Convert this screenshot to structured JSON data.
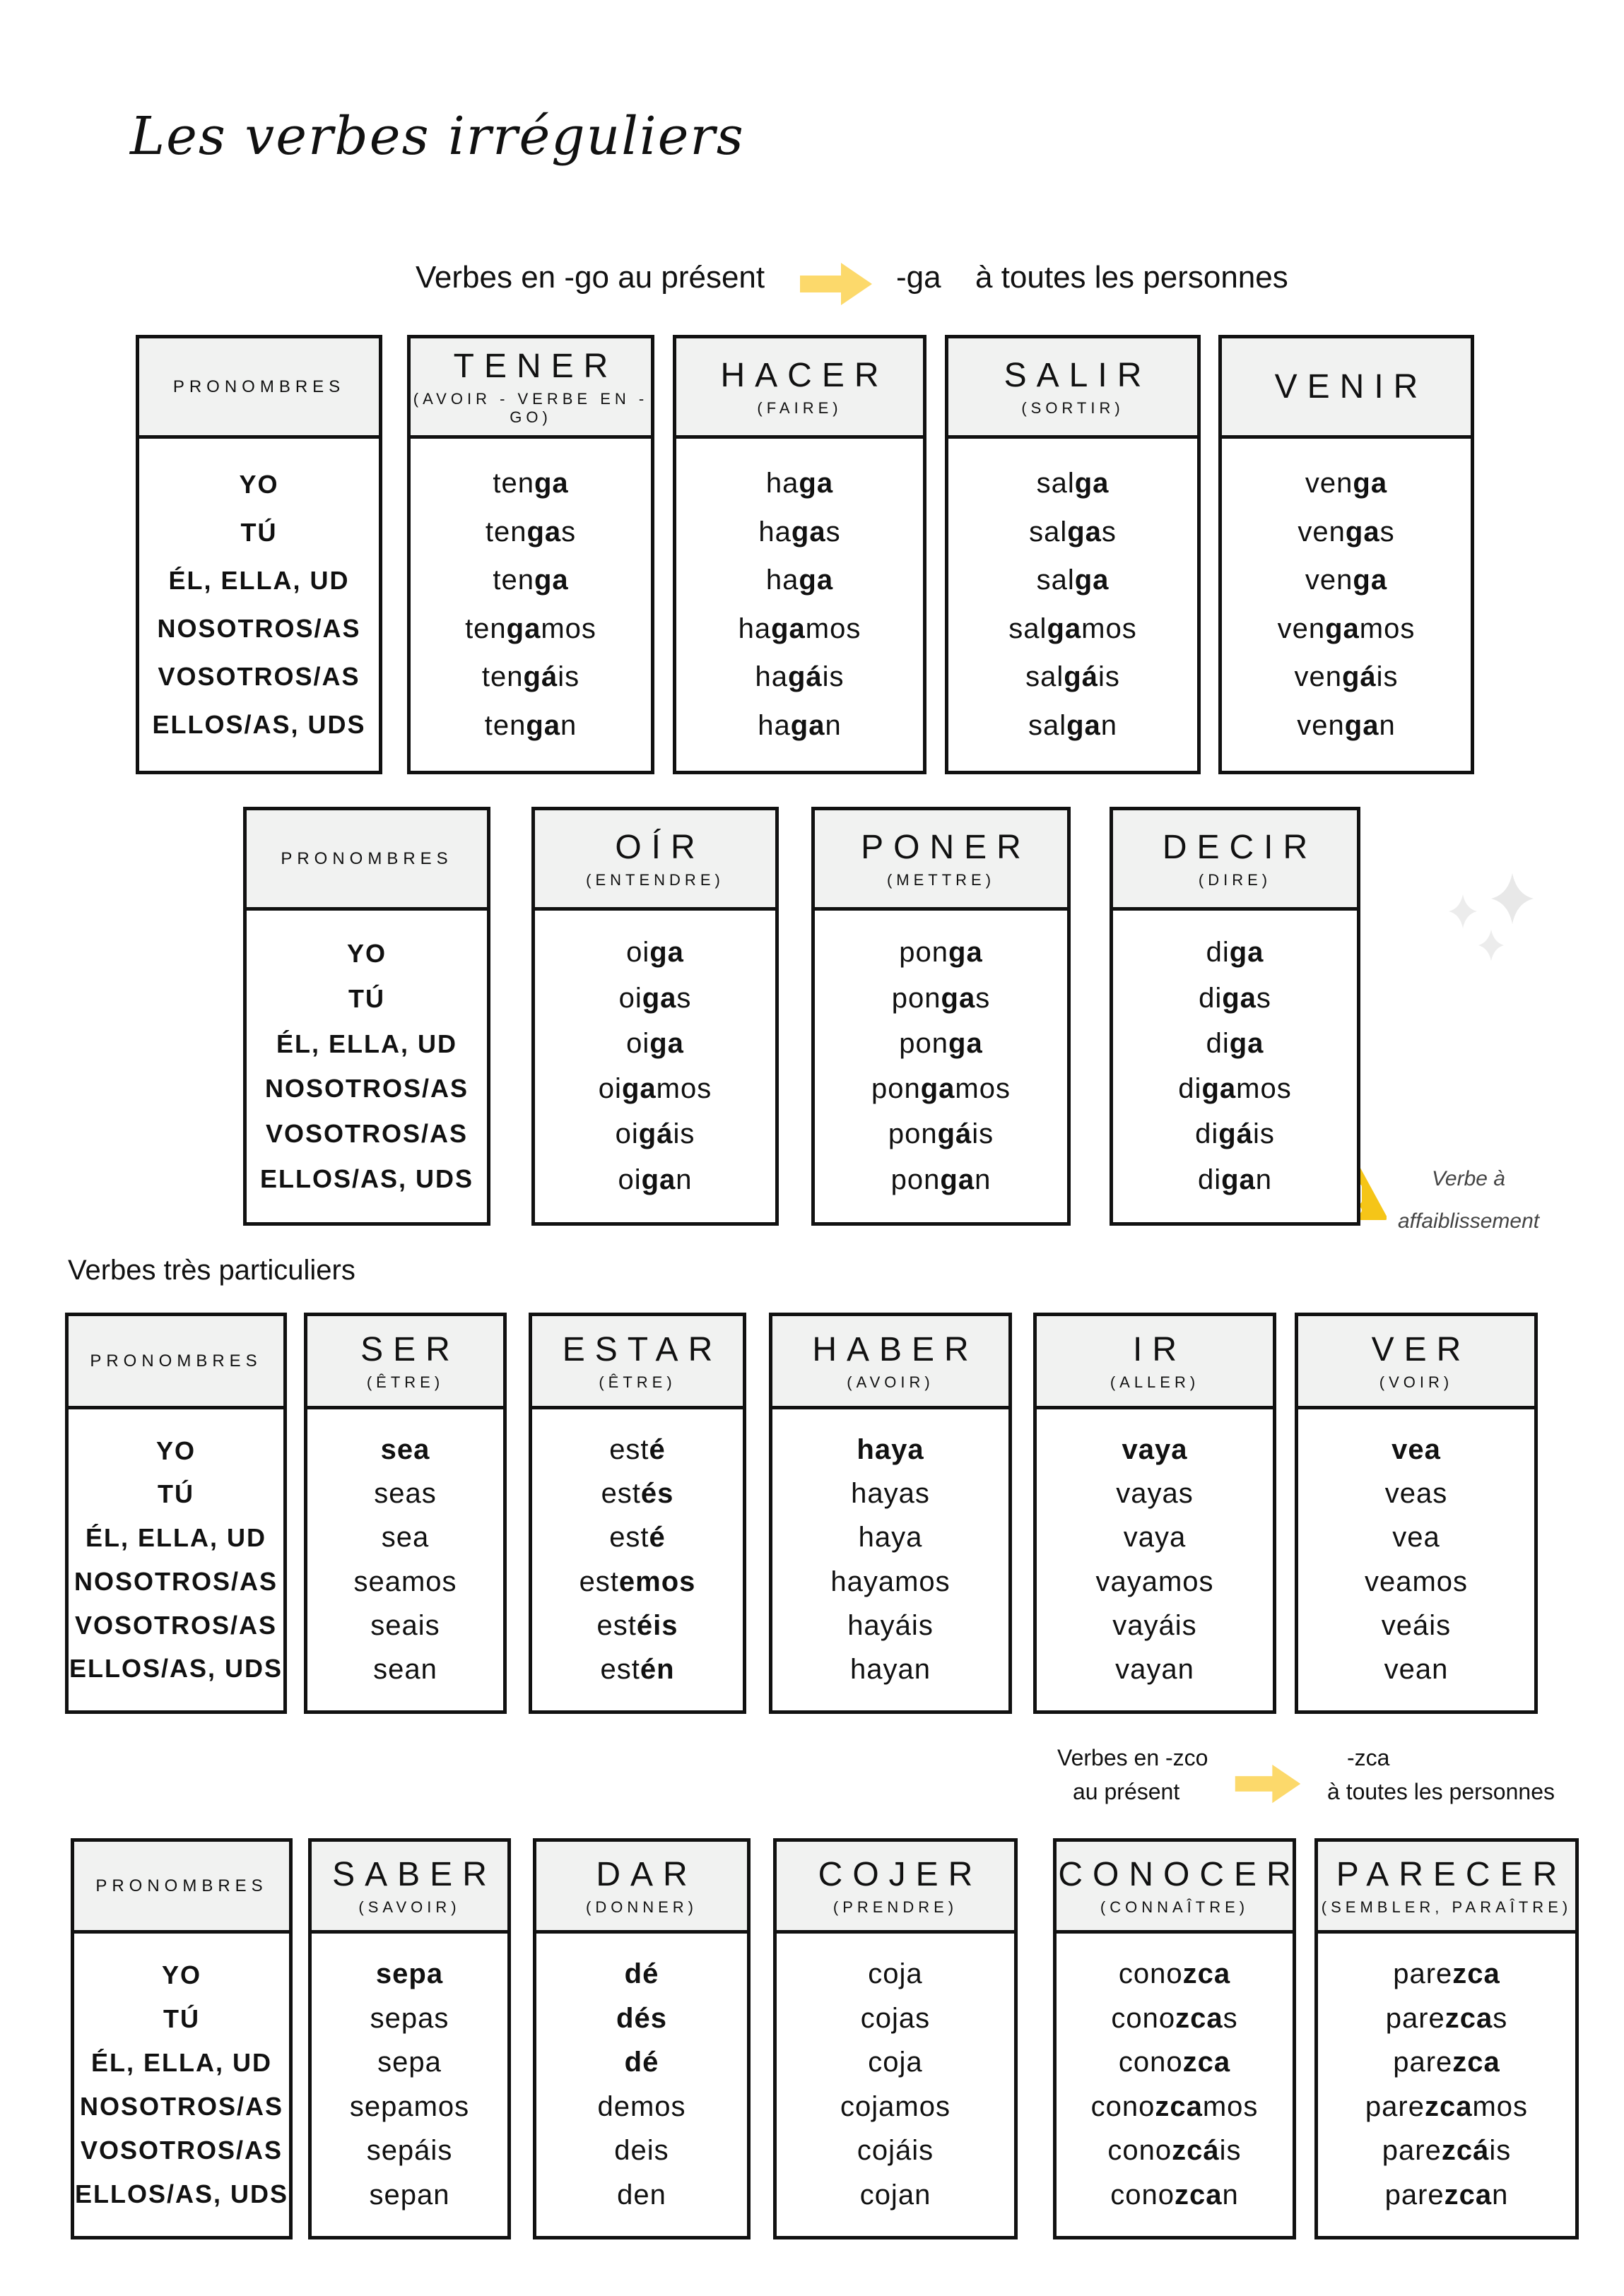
{
  "title": "Les verbes irréguliers",
  "section1": {
    "left": "Verbes en -go au présent",
    "ending": "-ga",
    "right": "à toutes les personnes"
  },
  "section3": {
    "heading": "Verbes très particuliers"
  },
  "section4": {
    "left1": "Verbes en -zco",
    "left2": "au présent",
    "ending": "-zca",
    "right": "à toutes les personnes"
  },
  "note": {
    "line1": "Verbe à",
    "line2": "affaiblissement",
    "icon": "warning-icon",
    "icon_color": "#f5c518"
  },
  "decoration": {
    "icon": "sparkle-icon",
    "color": "#e6e6e6"
  },
  "arrow_color": "#fcd96b",
  "pronoun_header": "PRONOMBRES",
  "pronouns": [
    "YO",
    "TÚ",
    "ÉL, ELLA, UD",
    "NOSOTROS/AS",
    "VOSOTROS/AS",
    "ELLOS/AS, UDS"
  ],
  "groups": [
    {
      "verbs": [
        {
          "name": "TENER",
          "meaning": "(AVOIR - VERBE EN -GO)",
          "forms": [
            {
              "pre": "ten",
              "bold": "ga",
              "post": ""
            },
            {
              "pre": "ten",
              "bold": "ga",
              "post": "s"
            },
            {
              "pre": "ten",
              "bold": "ga",
              "post": ""
            },
            {
              "pre": "ten",
              "bold": "ga",
              "post": "mos"
            },
            {
              "pre": "ten",
              "bold": "gá",
              "post": "is"
            },
            {
              "pre": "ten",
              "bold": "ga",
              "post": "n"
            }
          ]
        },
        {
          "name": "HACER",
          "meaning": "(FAIRE)",
          "forms": [
            {
              "pre": "ha",
              "bold": "ga",
              "post": ""
            },
            {
              "pre": "ha",
              "bold": "ga",
              "post": "s"
            },
            {
              "pre": "ha",
              "bold": "ga",
              "post": ""
            },
            {
              "pre": "ha",
              "bold": "ga",
              "post": "mos"
            },
            {
              "pre": "ha",
              "bold": "gá",
              "post": "is"
            },
            {
              "pre": "ha",
              "bold": "ga",
              "post": "n"
            }
          ]
        },
        {
          "name": "SALIR",
          "meaning": "(SORTIR)",
          "forms": [
            {
              "pre": "sal",
              "bold": "ga",
              "post": ""
            },
            {
              "pre": "sal",
              "bold": "ga",
              "post": "s"
            },
            {
              "pre": "sal",
              "bold": "ga",
              "post": ""
            },
            {
              "pre": "sal",
              "bold": "ga",
              "post": "mos"
            },
            {
              "pre": "sal",
              "bold": "gá",
              "post": "is"
            },
            {
              "pre": "sal",
              "bold": "ga",
              "post": "n"
            }
          ]
        },
        {
          "name": "VENIR",
          "meaning": "",
          "forms": [
            {
              "pre": "ven",
              "bold": "ga",
              "post": ""
            },
            {
              "pre": "ven",
              "bold": "ga",
              "post": "s"
            },
            {
              "pre": "ven",
              "bold": "ga",
              "post": ""
            },
            {
              "pre": "ven",
              "bold": "ga",
              "post": "mos"
            },
            {
              "pre": "ven",
              "bold": "gá",
              "post": "is"
            },
            {
              "pre": "ven",
              "bold": "ga",
              "post": "n"
            }
          ]
        }
      ]
    },
    {
      "verbs": [
        {
          "name": "OÍR",
          "meaning": "(ENTENDRE)",
          "forms": [
            {
              "pre": "oi",
              "bold": "ga",
              "post": ""
            },
            {
              "pre": "oi",
              "bold": "ga",
              "post": "s"
            },
            {
              "pre": "oi",
              "bold": "ga",
              "post": ""
            },
            {
              "pre": "oi",
              "bold": "ga",
              "post": "mos"
            },
            {
              "pre": "oi",
              "bold": "gá",
              "post": "is"
            },
            {
              "pre": "oi",
              "bold": "ga",
              "post": "n"
            }
          ]
        },
        {
          "name": "PONER",
          "meaning": "(METTRE)",
          "forms": [
            {
              "pre": "pon",
              "bold": "ga",
              "post": ""
            },
            {
              "pre": "pon",
              "bold": "ga",
              "post": "s"
            },
            {
              "pre": "pon",
              "bold": "ga",
              "post": ""
            },
            {
              "pre": "pon",
              "bold": "ga",
              "post": "mos"
            },
            {
              "pre": "pon",
              "bold": "gá",
              "post": "is"
            },
            {
              "pre": "pon",
              "bold": "ga",
              "post": "n"
            }
          ]
        },
        {
          "name": "DECIR",
          "meaning": "(DIRE)",
          "forms": [
            {
              "pre": "di",
              "bold": "ga",
              "post": ""
            },
            {
              "pre": "di",
              "bold": "ga",
              "post": "s"
            },
            {
              "pre": "di",
              "bold": "ga",
              "post": ""
            },
            {
              "pre": "di",
              "bold": "ga",
              "post": "mos"
            },
            {
              "pre": "di",
              "bold": "gá",
              "post": "is"
            },
            {
              "pre": "di",
              "bold": "ga",
              "post": "n"
            }
          ]
        }
      ]
    },
    {
      "verbs": [
        {
          "name": "SER",
          "meaning": "(ÊTRE)",
          "forms": [
            {
              "pre": "",
              "bold": "sea",
              "post": ""
            },
            {
              "pre": "seas",
              "bold": "",
              "post": ""
            },
            {
              "pre": "sea",
              "bold": "",
              "post": ""
            },
            {
              "pre": "seamos",
              "bold": "",
              "post": ""
            },
            {
              "pre": "seais",
              "bold": "",
              "post": ""
            },
            {
              "pre": "sean",
              "bold": "",
              "post": ""
            }
          ]
        },
        {
          "name": "ESTAR",
          "meaning": "(ÊTRE)",
          "forms": [
            {
              "pre": "est",
              "bold": "é",
              "post": ""
            },
            {
              "pre": "est",
              "bold": "és",
              "post": ""
            },
            {
              "pre": "est",
              "bold": "é",
              "post": ""
            },
            {
              "pre": "est",
              "bold": "emos",
              "post": ""
            },
            {
              "pre": "est",
              "bold": "éis",
              "post": ""
            },
            {
              "pre": "est",
              "bold": "én",
              "post": ""
            }
          ]
        },
        {
          "name": "HABER",
          "meaning": "(AVOIR)",
          "forms": [
            {
              "pre": "",
              "bold": "haya",
              "post": ""
            },
            {
              "pre": "hayas",
              "bold": "",
              "post": ""
            },
            {
              "pre": "haya",
              "bold": "",
              "post": ""
            },
            {
              "pre": "hayamos",
              "bold": "",
              "post": ""
            },
            {
              "pre": "hayáis",
              "bold": "",
              "post": ""
            },
            {
              "pre": "hayan",
              "bold": "",
              "post": ""
            }
          ]
        },
        {
          "name": "IR",
          "meaning": "(ALLER)",
          "forms": [
            {
              "pre": "",
              "bold": "vaya",
              "post": ""
            },
            {
              "pre": "vayas",
              "bold": "",
              "post": ""
            },
            {
              "pre": "vaya",
              "bold": "",
              "post": ""
            },
            {
              "pre": "vayamos",
              "bold": "",
              "post": ""
            },
            {
              "pre": "vayáis",
              "bold": "",
              "post": ""
            },
            {
              "pre": "vayan",
              "bold": "",
              "post": ""
            }
          ]
        },
        {
          "name": "VER",
          "meaning": "(VOIR)",
          "forms": [
            {
              "pre": "",
              "bold": "vea",
              "post": ""
            },
            {
              "pre": "veas",
              "bold": "",
              "post": ""
            },
            {
              "pre": "vea",
              "bold": "",
              "post": ""
            },
            {
              "pre": "veamos",
              "bold": "",
              "post": ""
            },
            {
              "pre": "veáis",
              "bold": "",
              "post": ""
            },
            {
              "pre": "vean",
              "bold": "",
              "post": ""
            }
          ]
        }
      ]
    },
    {
      "verbs": [
        {
          "name": "SABER",
          "meaning": "(SAVOIR)",
          "forms": [
            {
              "pre": "",
              "bold": "sepa",
              "post": ""
            },
            {
              "pre": "sepas",
              "bold": "",
              "post": ""
            },
            {
              "pre": "sepa",
              "bold": "",
              "post": ""
            },
            {
              "pre": "sepamos",
              "bold": "",
              "post": ""
            },
            {
              "pre": "sepáis",
              "bold": "",
              "post": ""
            },
            {
              "pre": "sepan",
              "bold": "",
              "post": ""
            }
          ]
        },
        {
          "name": "DAR",
          "meaning": "(DONNER)",
          "forms": [
            {
              "pre": "",
              "bold": "dé",
              "post": ""
            },
            {
              "pre": "",
              "bold": "dés",
              "post": ""
            },
            {
              "pre": "",
              "bold": "dé",
              "post": ""
            },
            {
              "pre": "demos",
              "bold": "",
              "post": ""
            },
            {
              "pre": "deis",
              "bold": "",
              "post": ""
            },
            {
              "pre": "den",
              "bold": "",
              "post": ""
            }
          ]
        },
        {
          "name": "COJER",
          "meaning": "(PRENDRE)",
          "forms": [
            {
              "pre": "coja",
              "bold": "",
              "post": ""
            },
            {
              "pre": "cojas",
              "bold": "",
              "post": ""
            },
            {
              "pre": "coja",
              "bold": "",
              "post": ""
            },
            {
              "pre": "cojamos",
              "bold": "",
              "post": ""
            },
            {
              "pre": "cojáis",
              "bold": "",
              "post": ""
            },
            {
              "pre": "cojan",
              "bold": "",
              "post": ""
            }
          ]
        },
        {
          "name": "CONOCER",
          "meaning": "(CONNAÎTRE)",
          "forms": [
            {
              "pre": "cono",
              "bold": "zca",
              "post": ""
            },
            {
              "pre": "cono",
              "bold": "zca",
              "post": "s"
            },
            {
              "pre": "cono",
              "bold": "zca",
              "post": ""
            },
            {
              "pre": "cono",
              "bold": "zca",
              "post": "mos"
            },
            {
              "pre": "cono",
              "bold": "zcá",
              "post": "is"
            },
            {
              "pre": "cono",
              "bold": "zca",
              "post": "n"
            }
          ]
        },
        {
          "name": "PARECER",
          "meaning": "(SEMBLER, PARAÎTRE)",
          "forms": [
            {
              "pre": "pare",
              "bold": "zca",
              "post": ""
            },
            {
              "pre": "pare",
              "bold": "zca",
              "post": "s"
            },
            {
              "pre": "pare",
              "bold": "zca",
              "post": ""
            },
            {
              "pre": "pare",
              "bold": "zca",
              "post": "mos"
            },
            {
              "pre": "pare",
              "bold": "zcá",
              "post": "is"
            },
            {
              "pre": "pare",
              "bold": "zca",
              "post": "n"
            }
          ]
        }
      ]
    }
  ]
}
